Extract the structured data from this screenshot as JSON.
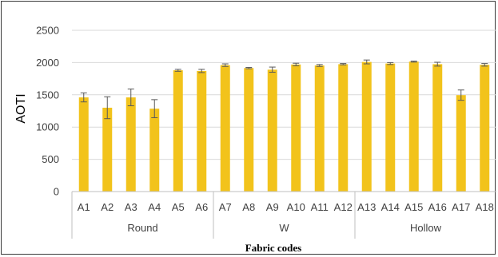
{
  "chart_data": {
    "type": "bar",
    "title": "",
    "xlabel": "Fabric codes",
    "ylabel": "AOTI",
    "ylim": [
      0,
      2500
    ],
    "yticks": [
      0,
      500,
      1000,
      1500,
      2000,
      2500
    ],
    "grid": true,
    "categories": [
      "A1",
      "A2",
      "A3",
      "A4",
      "A5",
      "A6",
      "A7",
      "A8",
      "A9",
      "A10",
      "A11",
      "A12",
      "A13",
      "A14",
      "A15",
      "A16",
      "A17",
      "A18"
    ],
    "values": [
      1460,
      1300,
      1460,
      1285,
      1880,
      1870,
      1960,
      1915,
      1890,
      1970,
      1955,
      1975,
      2010,
      1985,
      2015,
      1975,
      1495,
      1965
    ],
    "errors": [
      70,
      170,
      130,
      140,
      15,
      25,
      20,
      10,
      40,
      20,
      15,
      10,
      30,
      15,
      8,
      30,
      80,
      20
    ],
    "groups": [
      {
        "label": "Round",
        "start": 0,
        "end": 5
      },
      {
        "label": "W",
        "start": 6,
        "end": 11
      },
      {
        "label": "Hollow",
        "start": 12,
        "end": 17
      }
    ],
    "bar_color": "#F2C31B",
    "error_color": "#595959",
    "grid_color": "#d9d9d9"
  }
}
